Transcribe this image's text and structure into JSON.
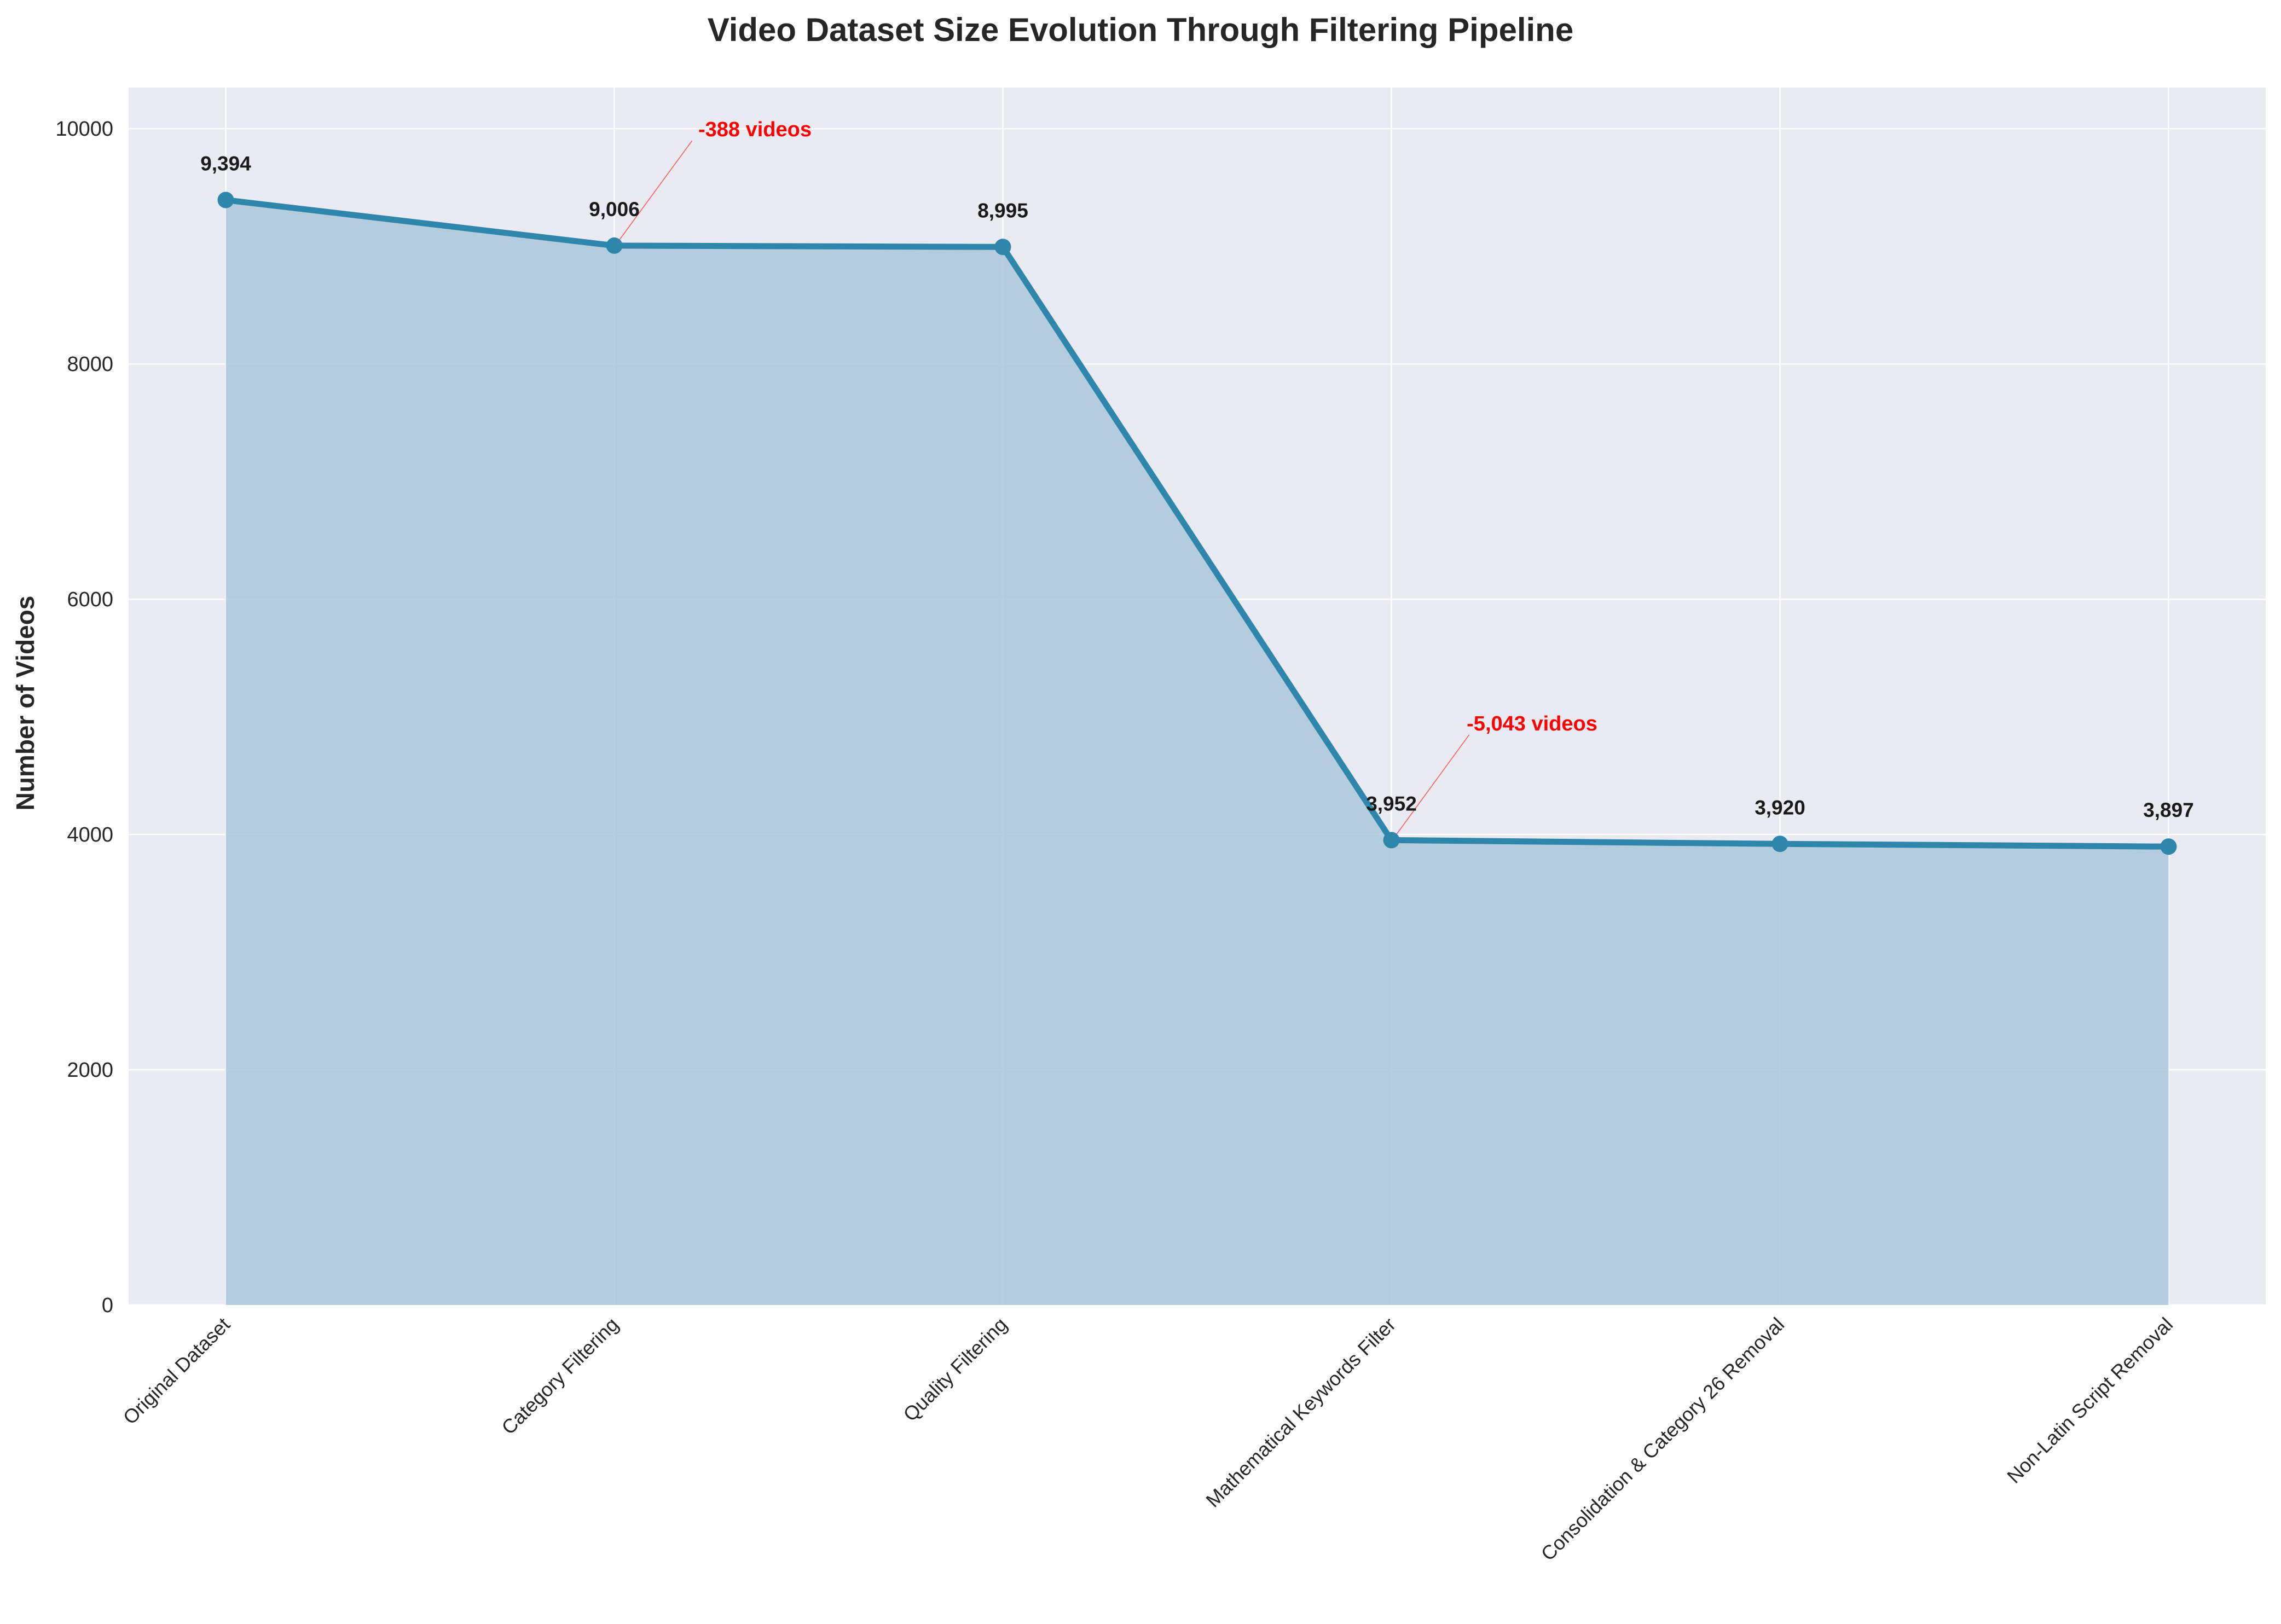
{
  "chart_data": {
    "type": "area",
    "title": "Video Dataset Size Evolution Through Filtering Pipeline",
    "xlabel": "",
    "ylabel": "Number of Videos",
    "categories": [
      "Original Dataset",
      "Category Filtering",
      "Quality Filtering",
      "Mathematical Keywords Filter",
      "Consolidation & Category 26 Removal",
      "Non-Latin Script Removal"
    ],
    "values": [
      9394,
      9006,
      8995,
      3952,
      3920,
      3897
    ],
    "data_labels": [
      "9,394",
      "9,006",
      "8,995",
      "3,952",
      "3,920",
      "3,897"
    ],
    "ylim": [
      0,
      10350
    ],
    "yticks": [
      0,
      2000,
      4000,
      6000,
      8000,
      10000
    ],
    "grid": true,
    "annotations": [
      {
        "text": "-388 videos",
        "point_index": 1,
        "text_x": 1.2,
        "text_y": 10000
      },
      {
        "text": "-5,043 videos",
        "point_index": 3,
        "text_x": 3.2,
        "text_y": 4950
      }
    ],
    "colors": {
      "line": "#2e86ab",
      "fill": "#a9c8dc",
      "plot_background": "#eaeaf2",
      "grid": "#ffffff",
      "annotation": "#ff0000"
    }
  }
}
